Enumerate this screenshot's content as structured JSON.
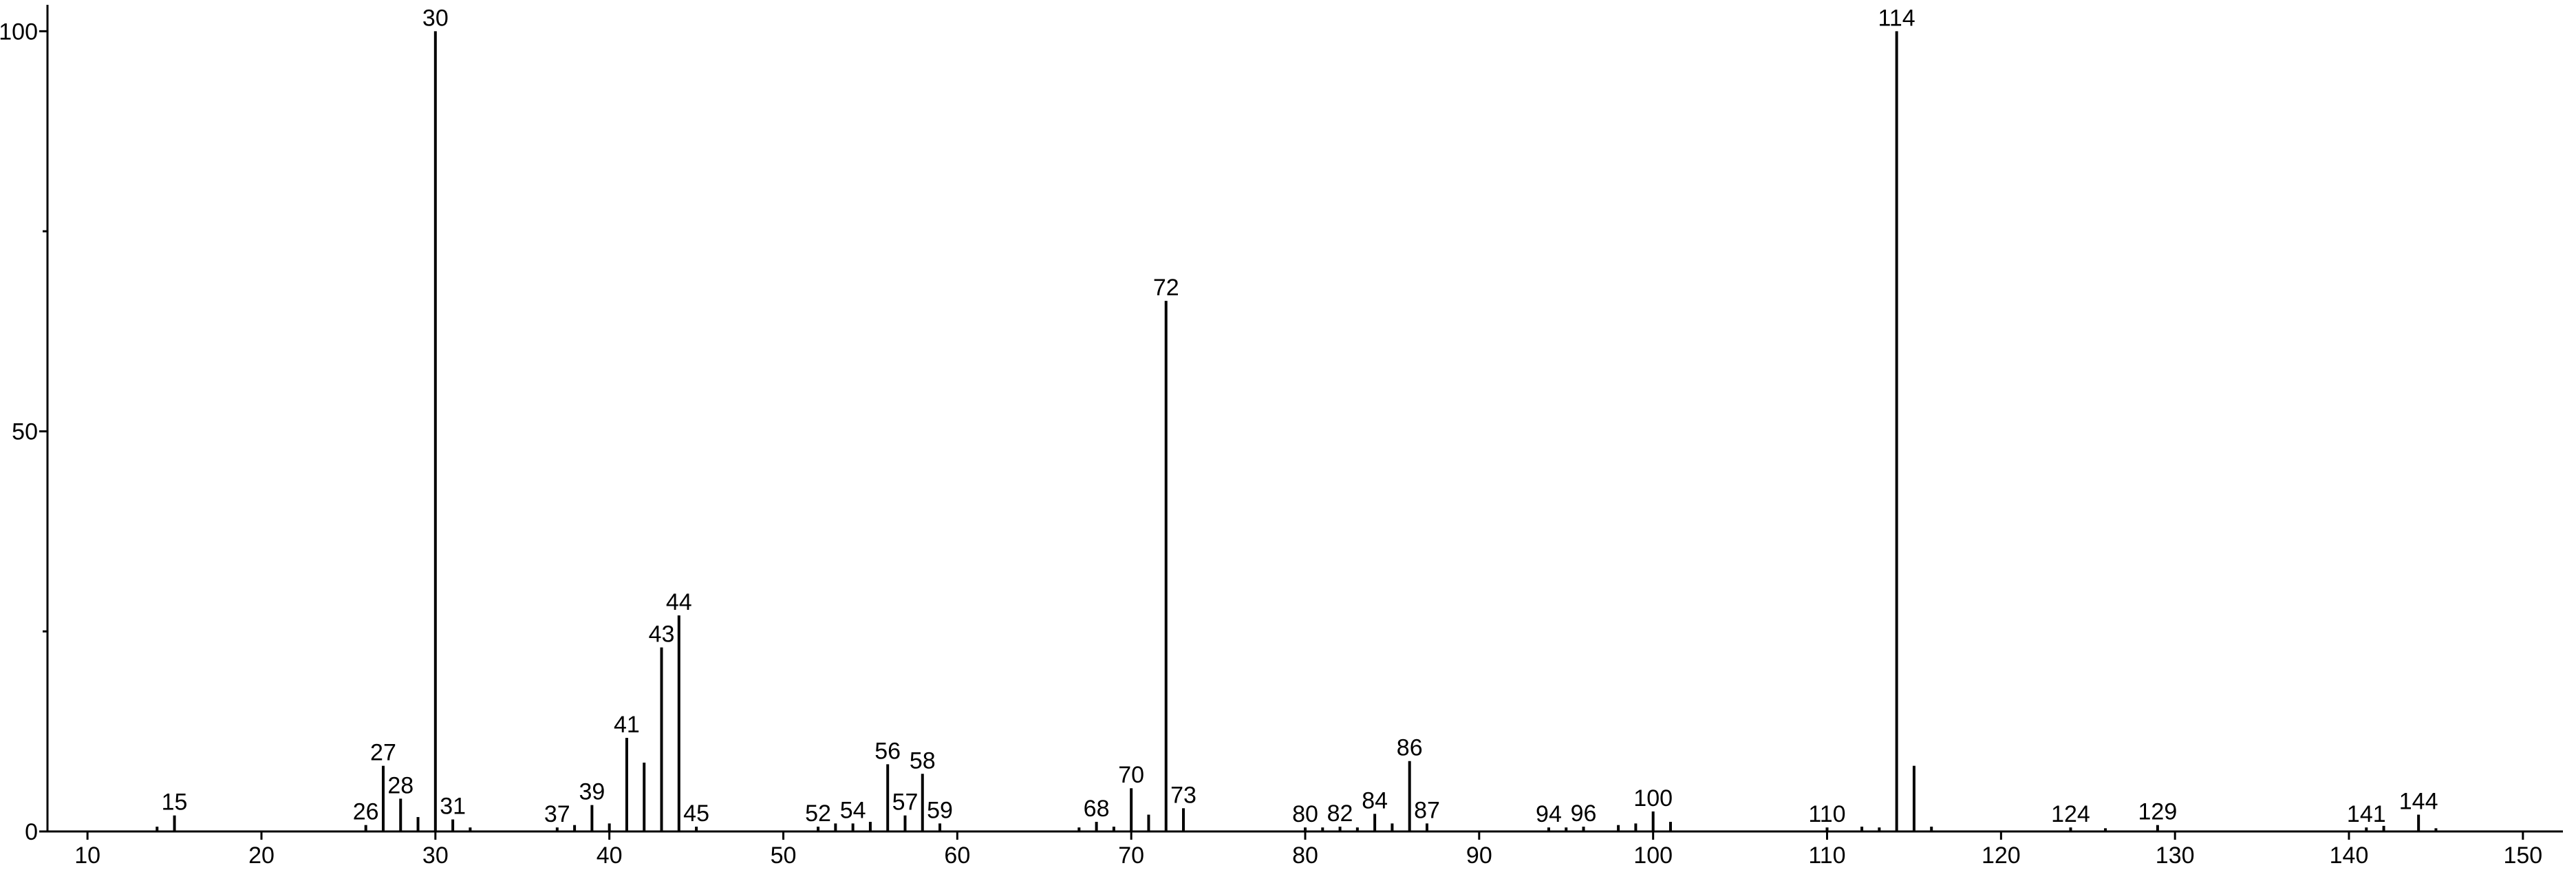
{
  "chart_data": {
    "type": "stem",
    "color": "#000000",
    "x": [
      14,
      15,
      26,
      27,
      28,
      29,
      30,
      31,
      32,
      37,
      38,
      39,
      40,
      41,
      42,
      43,
      44,
      45,
      52,
      53,
      54,
      55,
      56,
      57,
      58,
      59,
      67,
      68,
      69,
      70,
      71,
      72,
      73,
      80,
      81,
      82,
      83,
      84,
      85,
      86,
      87,
      94,
      95,
      96,
      98,
      99,
      100,
      101,
      110,
      112,
      113,
      114,
      115,
      116,
      124,
      126,
      129,
      141,
      142,
      144,
      145
    ],
    "values": [
      0.6,
      2,
      0.8,
      8.2,
      4.1,
      1.8,
      100,
      1.5,
      0.5,
      0.5,
      0.8,
      3.3,
      1,
      11.7,
      8.6,
      23,
      27,
      0.6,
      0.6,
      1,
      1,
      1.2,
      8.4,
      2,
      7.2,
      1,
      0.5,
      1.2,
      0.6,
      5.4,
      2.1,
      66.3,
      2.9,
      0.5,
      0.5,
      0.6,
      0.5,
      2.2,
      1,
      8.8,
      1,
      0.5,
      0.5,
      0.6,
      0.8,
      1,
      2.5,
      1.2,
      0.5,
      0.6,
      0.5,
      100,
      8.2,
      0.6,
      0.5,
      0.4,
      0.8,
      0.5,
      0.7,
      2.1,
      0.4
    ],
    "point_labels": [
      null,
      15,
      26,
      27,
      28,
      null,
      30,
      31,
      null,
      37,
      null,
      39,
      null,
      41,
      null,
      43,
      44,
      45,
      52,
      null,
      54,
      null,
      56,
      57,
      58,
      59,
      null,
      68,
      null,
      70,
      null,
      72,
      73,
      80,
      null,
      82,
      null,
      84,
      null,
      86,
      87,
      94,
      null,
      96,
      null,
      null,
      100,
      null,
      110,
      null,
      null,
      114,
      null,
      null,
      124,
      null,
      129,
      141,
      null,
      144,
      null
    ],
    "xlim": [
      7.7,
      152.3
    ],
    "ylim": [
      0,
      103.3
    ],
    "xticks": [
      10,
      20,
      30,
      40,
      50,
      60,
      70,
      80,
      90,
      100,
      110,
      120,
      130,
      140,
      150
    ],
    "yticks": [
      0,
      50,
      100
    ],
    "yminor_ticks": [
      25,
      75
    ]
  }
}
